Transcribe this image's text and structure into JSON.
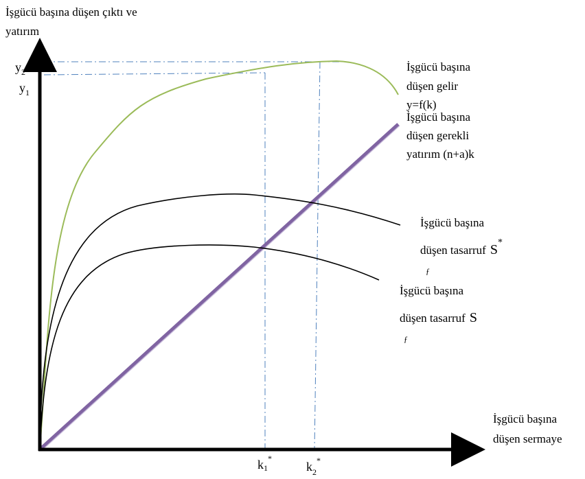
{
  "diagram": {
    "y_axis_label_line1": "İşgücü başına düşen çıktı ve",
    "y_axis_label_line2": "yatırım",
    "x_axis_label_line1": "İşgücü başına",
    "x_axis_label_line2": "düşen sermaye",
    "income_label_line1": "İşgücü başına",
    "income_label_line2": "düşen gelir",
    "income_label_line3": "y=f(k)",
    "investment_label_line1": "İşgücü başına",
    "investment_label_line2": "düşen gerekli",
    "investment_label_line3": "yatırım (n+a)k",
    "savings_upper_label_line1": "İşgücü başına",
    "savings_upper_label_line2": "düşen tasarruf",
    "savings_upper_symbol": "S",
    "savings_upper_sup": "*",
    "savings_lower_label_line1": "İşgücü başına",
    "savings_lower_label_line2": "düşen tasarruf",
    "savings_lower_symbol": "S",
    "y2_label": "y",
    "y2_sub": "2",
    "y1_label": "y",
    "y1_sub": "1",
    "k1_label": "k",
    "k1_sub": "1",
    "k1_sup": "*",
    "k2_label": "k",
    "k2_sub": "2",
    "k2_sup": "*"
  },
  "colors": {
    "axis": "#000000",
    "income_curve": "#9bbb59",
    "investment_line": "#8064a2",
    "savings_curves": "#000000",
    "guide_lines": "#4f81bd"
  }
}
